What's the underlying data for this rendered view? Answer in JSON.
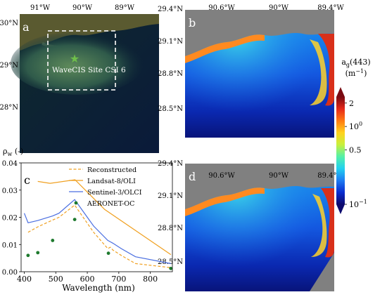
{
  "panel_a": {
    "label": "a",
    "lon_ticks": [
      "91°W",
      "90°W",
      "89°W"
    ],
    "lat_ticks": [
      "30°N",
      "29°N",
      "28°N"
    ],
    "site_label": "WaveCIS Site CSI 6",
    "marker_color": "#6fbf4a"
  },
  "panel_b": {
    "label": "b",
    "lon_ticks": [
      "90.6°W",
      "90°W",
      "89.4°W"
    ],
    "lat_ticks": [
      "29.4°N",
      "29.1°N",
      "28.8°N",
      "28.5°N"
    ]
  },
  "panel_d": {
    "label": "d",
    "lon_ticks": [
      "90.6°W",
      "90°W",
      "89.4°W"
    ],
    "lat_ticks": [
      "29.4°N",
      "29.1°N",
      "28.8°N",
      "28.5°N"
    ]
  },
  "colorbar": {
    "title_main": "a",
    "title_sub": "g",
    "title_rest": "(443)",
    "units_main": "(m",
    "units_sup": "−1",
    "units_close": ")",
    "scale": "log",
    "range": [
      0.1,
      2.4
    ],
    "ticks": [
      {
        "value": 2,
        "main": "2",
        "sup": ""
      },
      {
        "value": 1,
        "main": "10",
        "sup": "0"
      },
      {
        "value": 0.5,
        "main": "0.5",
        "sup": ""
      },
      {
        "value": 0.1,
        "main": "10",
        "sup": "−1"
      }
    ],
    "colors": [
      "#0c0a6e",
      "#0a2cd0",
      "#1e7cf2",
      "#22d1f0",
      "#54f0a8",
      "#c8f03c",
      "#ffd21e",
      "#ff7a12",
      "#e6281a",
      "#7a0a12"
    ]
  },
  "chart_data": {
    "type": "line",
    "panel_label": "c",
    "ylabel_main": "ρ",
    "ylabel_sub": "w",
    "ylabel_rest": " (-)",
    "xlabel": "Wavelength (nm)",
    "xlim": [
      390,
      870
    ],
    "ylim": [
      0,
      0.04
    ],
    "xticks": [
      400,
      500,
      600,
      700,
      800
    ],
    "yticks": [
      0.0,
      0.01,
      0.02,
      0.03,
      0.04
    ],
    "ytick_labels": [
      "0.00",
      "0.01",
      "0.02",
      "0.03",
      "0.04"
    ],
    "series": [
      {
        "name": "Reconstructed",
        "style": "dashed",
        "color": "#f0a020",
        "x": [
          412,
          443,
          490,
          510,
          560,
          620,
          665,
          673,
          681,
          708,
          753,
          865
        ],
        "y": [
          0.0145,
          0.0165,
          0.019,
          0.02,
          0.0245,
          0.0145,
          0.0085,
          0.009,
          0.008,
          0.006,
          0.003,
          0.0015
        ]
      },
      {
        "name": "Landsat-8/OLI",
        "style": "solid",
        "color": "#f0a020",
        "x": [
          443,
          482,
          561,
          655,
          865
        ],
        "y": [
          0.0332,
          0.0325,
          0.0338,
          0.0229,
          0.0063
        ]
      },
      {
        "name": "Sentinel-3/OLCI",
        "style": "solid",
        "color": "#4a6ee0",
        "x": [
          400,
          412,
          443,
          490,
          510,
          560,
          620,
          665,
          673,
          681,
          708,
          753,
          865
        ],
        "y": [
          0.0215,
          0.018,
          0.0188,
          0.0205,
          0.0215,
          0.0265,
          0.0168,
          0.0115,
          0.011,
          0.0105,
          0.0085,
          0.0055,
          0.003
        ]
      },
      {
        "name": "AERONET-OC",
        "style": "points",
        "color": "#1e7a2e",
        "x": [
          412,
          443,
          490,
          560,
          667,
          865
        ],
        "y": [
          0.006,
          0.007,
          0.0115,
          0.0192,
          0.0068,
          0.0012
        ]
      }
    ]
  }
}
